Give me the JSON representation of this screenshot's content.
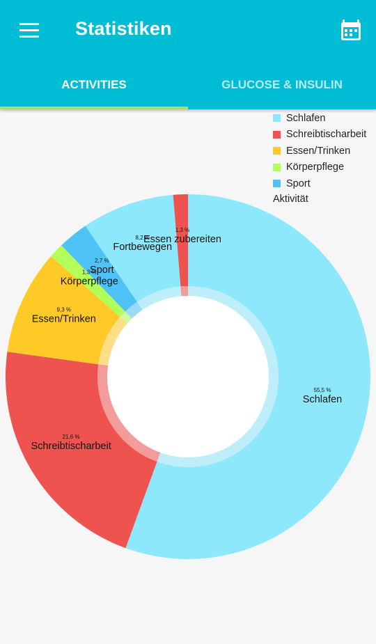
{
  "app": {
    "title": "Statistiken",
    "menu_icon": "hamburger-menu-icon",
    "calendar_icon": "calendar-icon"
  },
  "tabs": [
    {
      "label": "ACTIVITIES",
      "active": true
    },
    {
      "label": "GLUCOSE & INSULIN",
      "active": false
    }
  ],
  "colors": {
    "primary": "#00bcd4",
    "tab_indicator": "#b5d96a"
  },
  "chart_data": {
    "type": "pie",
    "legend_title": "Aktivität",
    "legend_placement": "top-right",
    "slices": [
      {
        "label": "Schlafen",
        "value": 55.5,
        "value_label": "55,5 %",
        "color": "#8ee8fc",
        "in_legend": true
      },
      {
        "label": "Schreibtischarbeit",
        "value": 21.6,
        "value_label": "21,6 %",
        "color": "#ef5350",
        "in_legend": true
      },
      {
        "label": "Essen/Trinken",
        "value": 9.3,
        "value_label": "9,3 %",
        "color": "#ffca28",
        "in_legend": true
      },
      {
        "label": "Körperpflege",
        "value": 1.3,
        "value_label": "1,3 %",
        "color": "#b2ff59",
        "in_legend": true
      },
      {
        "label": "Sport",
        "value": 2.7,
        "value_label": "2,7 %",
        "color": "#4fc3f7",
        "in_legend": true
      },
      {
        "label": "Fortbewegen",
        "value": 8.2,
        "value_label": "8,2 %",
        "color": "#8ee8fc",
        "in_legend": false
      },
      {
        "label": "Essen zubereiten",
        "value": 1.3,
        "value_label": "1,3 %",
        "color": "#ef5350",
        "in_legend": false
      }
    ]
  }
}
